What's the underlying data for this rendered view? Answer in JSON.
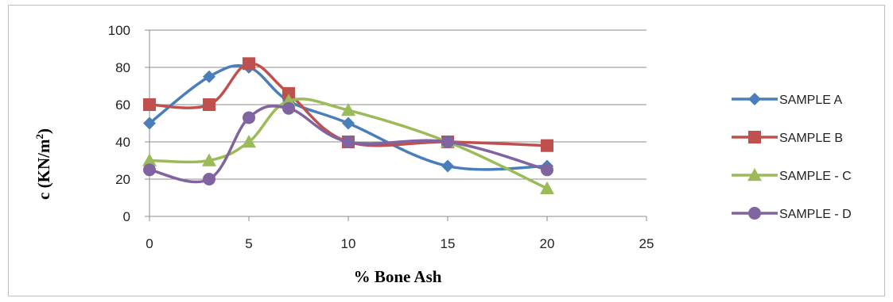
{
  "chart_data": {
    "type": "line",
    "smooth": true,
    "xlabel": "% Bone Ash",
    "ylabel_main": "c (KN/m",
    "ylabel_sup": "2",
    "ylabel_close": ")",
    "xlim": [
      0,
      25
    ],
    "ylim": [
      0,
      100
    ],
    "xticks": [
      0,
      5,
      10,
      15,
      20,
      25
    ],
    "yticks": [
      0,
      20,
      40,
      60,
      80,
      100
    ],
    "grid": "horizontal",
    "legend_position": "right",
    "series": [
      {
        "name": "SAMPLE   A",
        "color": "#4a7ebb",
        "marker": "diamond",
        "x": [
          0,
          3,
          5,
          7,
          10,
          15,
          20
        ],
        "y": [
          50,
          75,
          80,
          62,
          50,
          27,
          27
        ]
      },
      {
        "name": "SAMPLE   B",
        "color": "#c0504d",
        "marker": "square",
        "x": [
          0,
          3,
          5,
          7,
          10,
          15,
          20
        ],
        "y": [
          60,
          60,
          82,
          66,
          40,
          40,
          38
        ]
      },
      {
        "name": "SAMPLE - C",
        "color": "#9bbb59",
        "marker": "triangle",
        "x": [
          0,
          3,
          5,
          7,
          10,
          15,
          20
        ],
        "y": [
          30,
          30,
          40,
          62,
          57,
          40,
          15
        ]
      },
      {
        "name": "SAMPLE - D",
        "color": "#8064a2",
        "marker": "circle",
        "x": [
          0,
          3,
          5,
          7,
          10,
          15,
          20
        ],
        "y": [
          25,
          20,
          53,
          58,
          40,
          40,
          25
        ]
      }
    ]
  }
}
